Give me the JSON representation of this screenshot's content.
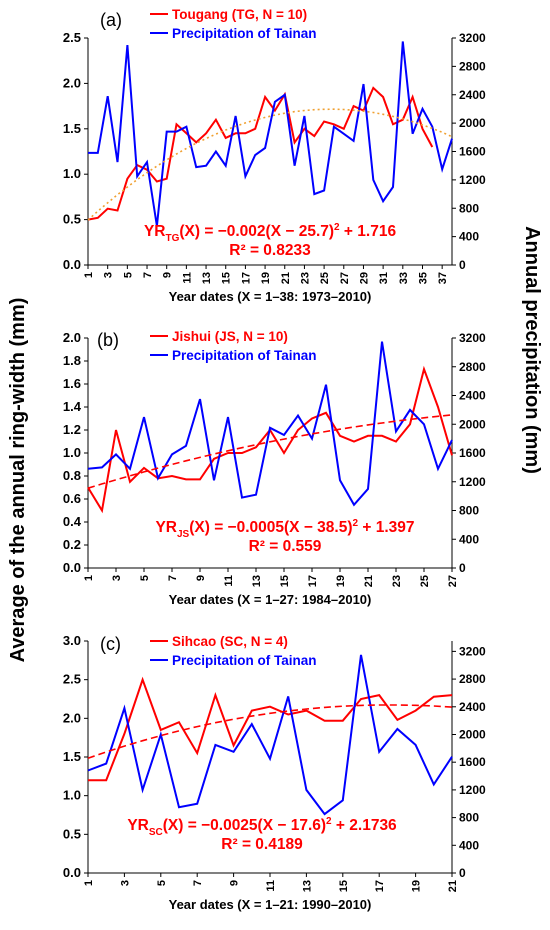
{
  "y_label": "Average of the annual ring-width (mm)",
  "y2_label": "Annual precipitation (mm)",
  "chart_data": [
    {
      "type": "line",
      "label": "(a)",
      "x_label": "Year dates (X = 1–38: 1973–2010)",
      "x": [
        1,
        2,
        3,
        4,
        5,
        6,
        7,
        8,
        9,
        10,
        11,
        12,
        13,
        14,
        15,
        16,
        17,
        18,
        19,
        20,
        21,
        22,
        23,
        24,
        25,
        26,
        27,
        28,
        29,
        30,
        31,
        32,
        33,
        34,
        35,
        36,
        37,
        38
      ],
      "xlim": [
        1,
        38
      ],
      "xticks": [
        1,
        3,
        5,
        7,
        9,
        11,
        13,
        15,
        17,
        19,
        21,
        23,
        25,
        27,
        29,
        31,
        33,
        35,
        37
      ],
      "ylim": [
        0,
        2.5
      ],
      "yticks": [
        {
          "value": 0,
          "label": "0.0"
        },
        0.5,
        {
          "value": 1,
          "label": "1.0"
        },
        1.5,
        {
          "value": 2,
          "label": "2.0"
        },
        2.5
      ],
      "y2lim": [
        0,
        3200
      ],
      "y2ticks": [
        0,
        400,
        800,
        1200,
        1600,
        2000,
        2400,
        2800,
        3200
      ],
      "series": [
        {
          "name": "Tougang (TG, N = 10)",
          "color": "#ff0000",
          "values": [
            0.5,
            0.52,
            0.62,
            0.6,
            0.95,
            1.1,
            1.05,
            0.92,
            0.95,
            1.55,
            1.45,
            1.35,
            1.45,
            1.6,
            1.4,
            1.45,
            1.45,
            1.5,
            1.85,
            1.7,
            1.88,
            1.35,
            1.5,
            1.42,
            1.58,
            1.55,
            1.5,
            1.75,
            1.7,
            1.95,
            1.85,
            1.55,
            1.6,
            1.85,
            1.5,
            1.3,
            null,
            null
          ]
        },
        {
          "name": "Precipitation of Tainan",
          "color": "#0000ff",
          "axis": "y2",
          "values": [
            1580,
            1580,
            2380,
            1450,
            3100,
            1250,
            1450,
            550,
            1880,
            1880,
            1950,
            1380,
            1400,
            1600,
            1400,
            2100,
            1250,
            1550,
            1650,
            2300,
            2400,
            1400,
            2100,
            1000,
            1050,
            1950,
            1850,
            1750,
            2550,
            1200,
            900,
            1100,
            3150,
            1850,
            2200,
            1950,
            1350,
            1780
          ]
        },
        {
          "color": "#f0a030",
          "style": "dotted",
          "values": [
            0.496,
            0.593,
            0.685,
            0.774,
            0.859,
            0.94,
            1.017,
            1.089,
            1.158,
            1.223,
            1.284,
            1.341,
            1.393,
            1.442,
            1.487,
            1.528,
            1.565,
            1.597,
            1.626,
            1.651,
            1.672,
            1.689,
            1.701,
            1.71,
            1.715,
            1.716,
            1.713,
            1.705,
            1.694,
            1.679,
            1.66,
            1.637,
            1.609,
            1.578,
            1.543,
            1.504,
            1.461,
            1.413
          ]
        }
      ],
      "equation": [
        "YR",
        "TG",
        "(X) = −0.002(X − 25.7)",
        "2",
        " + 1.716"
      ],
      "r2": "R² = 0.8233"
    },
    {
      "type": "line",
      "label": "(b)",
      "x_label": "Year dates (X = 1–27: 1984–2010)",
      "x": [
        1,
        2,
        3,
        4,
        5,
        6,
        7,
        8,
        9,
        10,
        11,
        12,
        13,
        14,
        15,
        16,
        17,
        18,
        19,
        20,
        21,
        22,
        23,
        24,
        25,
        26,
        27
      ],
      "xlim": [
        1,
        27
      ],
      "xticks": [
        1,
        3,
        5,
        7,
        9,
        11,
        13,
        15,
        17,
        19,
        21,
        23,
        25,
        27
      ],
      "ylim": [
        0,
        2
      ],
      "yticks": [
        {
          "value": 0,
          "label": "0.0"
        },
        0.2,
        0.4,
        0.6,
        0.8,
        {
          "value": 1,
          "label": "1.0"
        },
        1.2,
        1.4,
        1.6,
        1.8,
        {
          "value": 2,
          "label": "2.0"
        }
      ],
      "y2lim": [
        0,
        3200
      ],
      "y2ticks": [
        0,
        400,
        800,
        1200,
        1600,
        2000,
        2400,
        2800,
        3200
      ],
      "series": [
        {
          "name": "Jishui (JS, N = 10)",
          "color": "#ff0000",
          "values": [
            0.7,
            0.5,
            1.2,
            0.75,
            0.87,
            0.78,
            0.8,
            0.77,
            0.77,
            0.95,
            1.0,
            1.0,
            1.05,
            1.2,
            1.0,
            1.2,
            1.3,
            1.35,
            1.15,
            1.1,
            1.15,
            1.15,
            1.1,
            1.25,
            1.73,
            1.4,
            0.98
          ]
        },
        {
          "name": "Precipitation of Tainan",
          "color": "#0000ff",
          "axis": "y2",
          "values": [
            1380,
            1400,
            1580,
            1380,
            2100,
            1250,
            1580,
            1700,
            2350,
            1220,
            2100,
            980,
            1020,
            1950,
            1850,
            2120,
            1800,
            2550,
            1220,
            880,
            1100,
            3150,
            1900,
            2200,
            2000,
            1380,
            1780
          ]
        },
        {
          "color": "#ff0000",
          "style": "dashed",
          "values": [
            0.694,
            0.731,
            0.767,
            0.802,
            0.836,
            0.869,
            0.901,
            0.932,
            0.962,
            0.991,
            1.019,
            1.046,
            1.072,
            1.097,
            1.121,
            1.144,
            1.166,
            1.187,
            1.207,
            1.226,
            1.244,
            1.261,
            1.277,
            1.292,
            1.306,
            1.319,
            1.331
          ]
        }
      ],
      "equation": [
        "YR",
        "JS",
        "(X) = −0.0005(X − 38.5)",
        "2",
        " + 1.397"
      ],
      "r2": "R² = 0.559"
    },
    {
      "type": "line",
      "label": "(c)",
      "x_label": "Year dates (X = 1–21: 1990–2010)",
      "x": [
        1,
        2,
        3,
        4,
        5,
        6,
        7,
        8,
        9,
        10,
        11,
        12,
        13,
        14,
        15,
        16,
        17,
        18,
        19,
        20,
        21
      ],
      "xlim": [
        1,
        21
      ],
      "xticks": [
        1,
        3,
        5,
        7,
        9,
        11,
        13,
        15,
        17,
        19,
        21
      ],
      "ylim": [
        0,
        3
      ],
      "yticks": [
        {
          "value": 0,
          "label": "0.0"
        },
        0.5,
        {
          "value": 1,
          "label": "1.0"
        },
        1.5,
        {
          "value": 2,
          "label": "2.0"
        },
        2.5,
        {
          "value": 3,
          "label": "3.0"
        }
      ],
      "y2lim": [
        0,
        3350
      ],
      "y2ticks": [
        0,
        400,
        800,
        1200,
        1600,
        2000,
        2400,
        2800,
        3200
      ],
      "series": [
        {
          "name": "Sihcao (SC, N = 4)",
          "color": "#ff0000",
          "values": [
            1.2,
            1.2,
            1.8,
            2.5,
            1.85,
            1.95,
            1.55,
            2.3,
            1.65,
            2.1,
            2.15,
            2.05,
            2.1,
            1.97,
            1.97,
            2.25,
            2.3,
            1.98,
            2.1,
            2.28,
            2.3
          ]
        },
        {
          "name": "Precipitation of Tainan",
          "color": "#0000ff",
          "axis": "y2",
          "values": [
            1480,
            1580,
            2380,
            1200,
            2000,
            950,
            1000,
            1850,
            1750,
            2150,
            1650,
            2550,
            1200,
            850,
            1050,
            3150,
            1750,
            2080,
            1850,
            1280,
            1680
          ]
        },
        {
          "color": "#ff0000",
          "style": "dashed",
          "values": [
            1.485,
            1.565,
            1.641,
            1.711,
            1.777,
            1.837,
            1.893,
            1.943,
            1.989,
            2.029,
            2.065,
            2.095,
            2.121,
            2.141,
            2.157,
            2.167,
            2.173,
            2.173,
            2.169,
            2.159,
            2.145
          ]
        }
      ],
      "equation": [
        "YR",
        "SC",
        "(X) = −0.0025(X − 17.6)",
        "2",
        " + 2.1736"
      ],
      "r2": "R² = 0.4189"
    }
  ]
}
